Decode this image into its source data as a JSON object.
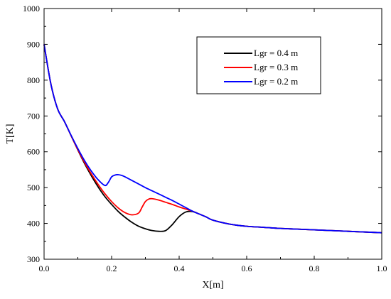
{
  "chart_data": {
    "type": "line",
    "xlabel": "X[m]",
    "ylabel": "T[K]",
    "xlim": [
      0,
      1.0
    ],
    "ylim": [
      300,
      1000
    ],
    "x_ticks": [
      "0.0",
      "0.2",
      "0.4",
      "0.6",
      "0.8",
      "1.0"
    ],
    "y_ticks": [
      "300",
      "400",
      "500",
      "600",
      "700",
      "800",
      "900",
      "1000"
    ],
    "grid": false,
    "legend_position": "top-right",
    "series": [
      {
        "name": "Lgr = 0.4 m",
        "color": "#000000",
        "x": [
          0,
          0.02,
          0.04,
          0.06,
          0.08,
          0.1,
          0.12,
          0.14,
          0.16,
          0.18,
          0.2,
          0.22,
          0.24,
          0.26,
          0.28,
          0.3,
          0.32,
          0.34,
          0.36,
          0.38,
          0.4,
          0.42,
          0.44,
          0.46,
          0.48,
          0.5,
          0.55,
          0.6,
          0.65,
          0.7,
          0.75,
          0.8,
          0.85,
          0.9,
          0.95,
          1.0
        ],
        "y": [
          900,
          790,
          720,
          685,
          645,
          605,
          567,
          533,
          502,
          475,
          453,
          433,
          417,
          403,
          392,
          385,
          380,
          378,
          380,
          397,
          419,
          432,
          433,
          426,
          418,
          409,
          398,
          392,
          389,
          386,
          384,
          382,
          380,
          378,
          376,
          374
        ]
      },
      {
        "name": "Lgr = 0.3 m",
        "color": "#ff0000",
        "x": [
          0,
          0.02,
          0.04,
          0.06,
          0.08,
          0.1,
          0.12,
          0.14,
          0.16,
          0.18,
          0.2,
          0.22,
          0.24,
          0.26,
          0.28,
          0.29,
          0.3,
          0.31,
          0.32,
          0.34,
          0.36,
          0.38,
          0.4,
          0.42,
          0.44,
          0.46,
          0.48,
          0.5,
          0.55,
          0.6,
          0.65,
          0.7,
          0.75,
          0.8,
          0.85,
          0.9,
          0.95,
          1.0
        ],
        "y": [
          900,
          790,
          720,
          685,
          645,
          606,
          570,
          538,
          509,
          483,
          461,
          443,
          430,
          424,
          429,
          445,
          461,
          468,
          469,
          465,
          459,
          453,
          446,
          440,
          434,
          426,
          418,
          409,
          398,
          392,
          389,
          386,
          384,
          382,
          380,
          378,
          376,
          374
        ]
      },
      {
        "name": "Lgr = 0.2 m",
        "color": "#0000ff",
        "x": [
          0,
          0.02,
          0.04,
          0.06,
          0.08,
          0.1,
          0.12,
          0.14,
          0.16,
          0.18,
          0.19,
          0.2,
          0.21,
          0.22,
          0.23,
          0.24,
          0.26,
          0.28,
          0.3,
          0.32,
          0.34,
          0.36,
          0.38,
          0.4,
          0.42,
          0.44,
          0.46,
          0.48,
          0.5,
          0.55,
          0.6,
          0.65,
          0.7,
          0.75,
          0.8,
          0.85,
          0.9,
          0.95,
          1.0
        ],
        "y": [
          900,
          790,
          720,
          685,
          646,
          609,
          575,
          546,
          522,
          506,
          514,
          530,
          535,
          536,
          534,
          530,
          520,
          510,
          500,
          491,
          482,
          473,
          464,
          454,
          444,
          434,
          426,
          418,
          409,
          398,
          392,
          389,
          386,
          384,
          382,
          380,
          378,
          376,
          374
        ]
      }
    ]
  }
}
